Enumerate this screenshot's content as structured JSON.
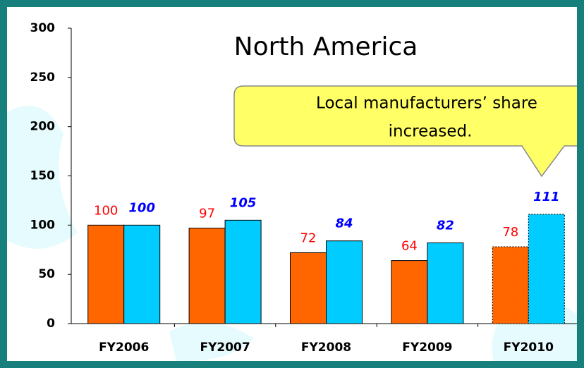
{
  "chart_data": {
    "type": "bar",
    "title": "North America",
    "annotation": [
      "Local manufacturers’ share",
      "increased."
    ],
    "categories": [
      "FY2006",
      "FY2007",
      "FY2008",
      "FY2009",
      "FY2010"
    ],
    "series": [
      {
        "color": "#ff6600",
        "label_color": "#ff0000",
        "values": [
          100,
          97,
          72,
          64,
          78
        ]
      },
      {
        "color": "#00ccff",
        "label_color": "#0000ff",
        "values": [
          100,
          105,
          84,
          82,
          111
        ]
      }
    ],
    "dotted": [
      4
    ],
    "ylim": [
      0,
      300
    ],
    "yticks": [
      0,
      50,
      100,
      150,
      200,
      250,
      300
    ]
  }
}
